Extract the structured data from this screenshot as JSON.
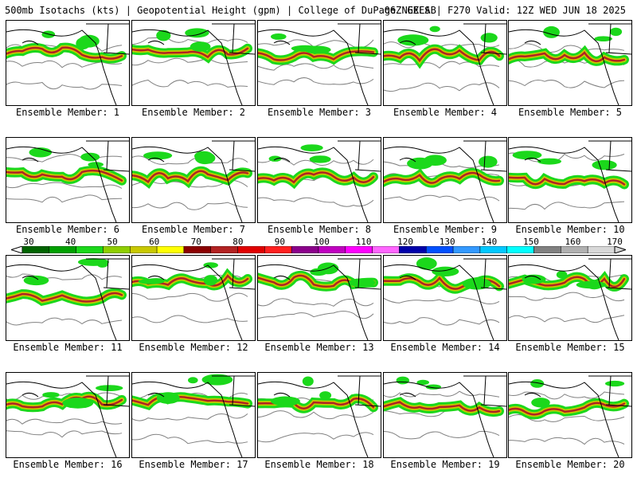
{
  "header": {
    "title_left": "500mb Isotachs (kts) | Geopotential Height (gpm) | College of DuPage NEXLAB",
    "title_right": "06Z GEFS | F270 Valid: 12Z WED JUN 18 2025"
  },
  "colorbar": {
    "labels": [
      "30",
      "40",
      "50",
      "60",
      "70",
      "80",
      "90",
      "100",
      "110",
      "120",
      "130",
      "140",
      "150",
      "160",
      "170"
    ],
    "colors": [
      "#006400",
      "#00a000",
      "#1bd81b",
      "#8fce00",
      "#c8c800",
      "#ffff00",
      "#8b0000",
      "#b22222",
      "#e00000",
      "#ff2020",
      "#8b008b",
      "#c000c0",
      "#ff00ff",
      "#ff66ff",
      "#0000aa",
      "#0050ff",
      "#3399ff",
      "#00c8ff",
      "#00ffff",
      "#808080",
      "#b0b0b0",
      "#d8d8d8"
    ]
  },
  "legend_colors": {
    "wind_low": "#1bd81b",
    "wind_mid": "#c8c800",
    "wind_high": "#b22222",
    "height_contour": "#808080",
    "coastline": "#000000"
  },
  "members": [
    {
      "label": "Ensemble Member: 1"
    },
    {
      "label": "Ensemble Member: 2"
    },
    {
      "label": "Ensemble Member: 3"
    },
    {
      "label": "Ensemble Member: 4"
    },
    {
      "label": "Ensemble Member: 5"
    },
    {
      "label": "Ensemble Member: 6"
    },
    {
      "label": "Ensemble Member: 7"
    },
    {
      "label": "Ensemble Member: 8"
    },
    {
      "label": "Ensemble Member: 9"
    },
    {
      "label": "Ensemble Member: 10"
    },
    {
      "label": "Ensemble Member: 11"
    },
    {
      "label": "Ensemble Member: 12"
    },
    {
      "label": "Ensemble Member: 13"
    },
    {
      "label": "Ensemble Member: 14"
    },
    {
      "label": "Ensemble Member: 15"
    },
    {
      "label": "Ensemble Member: 16"
    },
    {
      "label": "Ensemble Member: 17"
    },
    {
      "label": "Ensemble Member: 18"
    },
    {
      "label": "Ensemble Member: 19"
    },
    {
      "label": "Ensemble Member: 20"
    }
  ]
}
